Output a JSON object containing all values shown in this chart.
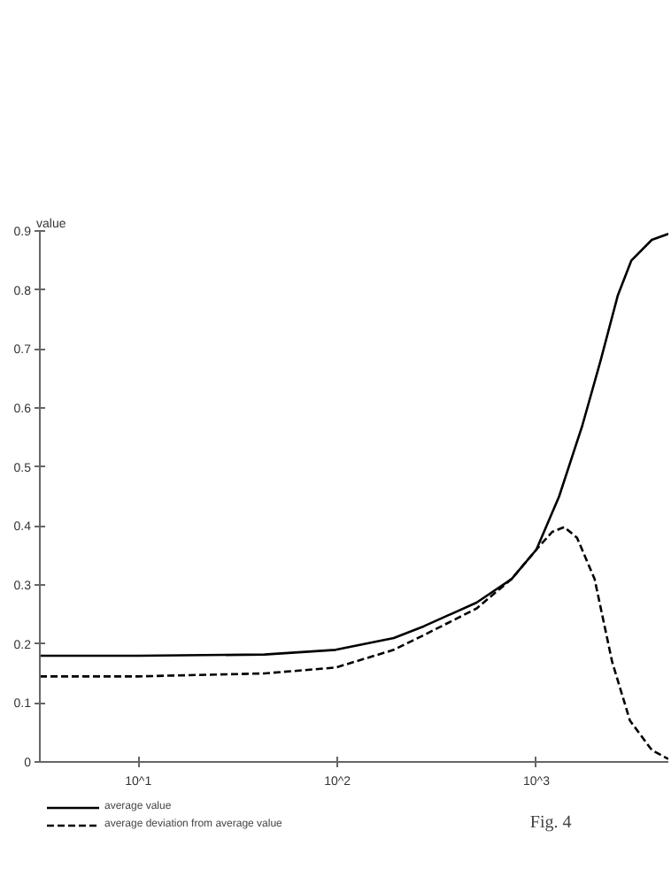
{
  "chart_data": {
    "type": "line",
    "ylabel": "value",
    "log": "x",
    "xlim": [
      3.2,
      4600
    ],
    "ylim": [
      0,
      0.9
    ],
    "xticks": [
      {
        "value": 10,
        "label": "10^1"
      },
      {
        "value": 100,
        "label": "10^2"
      },
      {
        "value": 1000,
        "label": "10^3"
      }
    ],
    "yticks": [
      0,
      0.1,
      0.2,
      0.3,
      0.4,
      0.5,
      0.6,
      0.7,
      0.8,
      0.9
    ],
    "legend": "bottom left",
    "grid": false,
    "annotations": [
      "Fig. 4"
    ],
    "series": [
      {
        "name": "average value",
        "color": "#000000",
        "line_style": "solid",
        "x": [
          3.2,
          10,
          43,
          98,
          192,
          272,
          500,
          750,
          1000,
          1300,
          1700,
          2100,
          2560,
          3000,
          3800,
          4600
        ],
        "values": [
          0.18,
          0.18,
          0.182,
          0.19,
          0.21,
          0.23,
          0.27,
          0.31,
          0.36,
          0.45,
          0.57,
          0.68,
          0.79,
          0.85,
          0.885,
          0.895
        ]
      },
      {
        "name": "average deviation from average value",
        "color": "#000000",
        "line_style": "dashed",
        "x": [
          3.2,
          10,
          43,
          98,
          192,
          272,
          500,
          750,
          1000,
          1200,
          1380,
          1600,
          1960,
          2400,
          2950,
          3800,
          4600
        ],
        "values": [
          0.145,
          0.145,
          0.15,
          0.16,
          0.19,
          0.215,
          0.26,
          0.31,
          0.36,
          0.39,
          0.398,
          0.38,
          0.31,
          0.17,
          0.07,
          0.02,
          0.005
        ]
      }
    ]
  }
}
